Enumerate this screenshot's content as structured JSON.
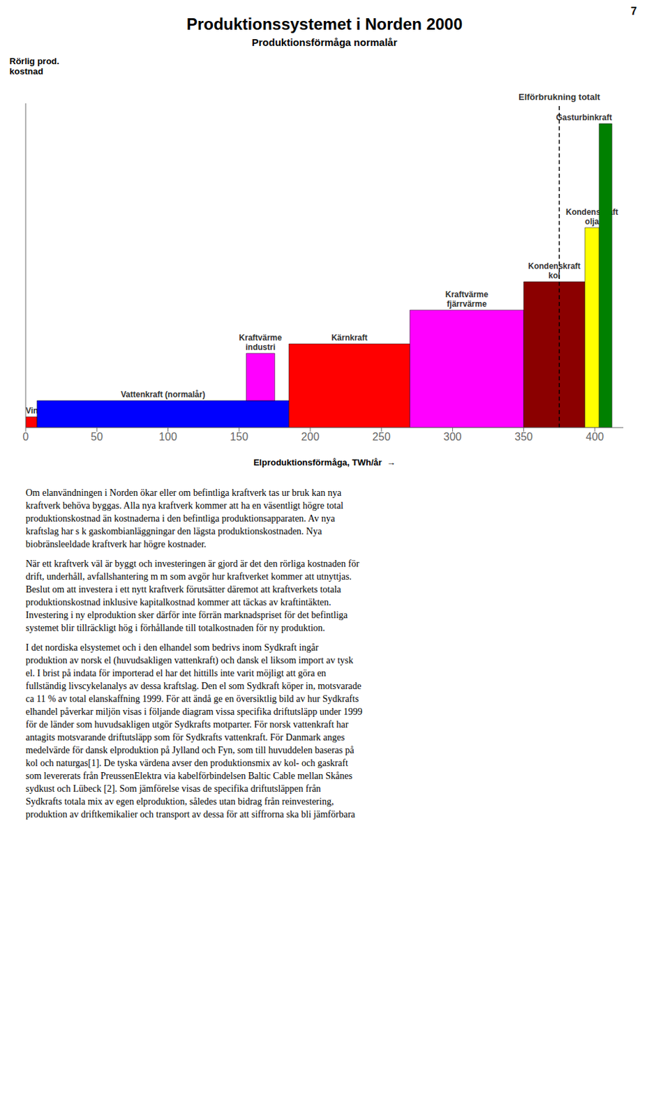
{
  "chart_data": {
    "type": "bar",
    "title": "Produktionssystemet i Norden 2000",
    "subtitle": "Produktionsförmåga normalår",
    "ylabel": "Rörlig prod.\nkostnad",
    "xlabel": "Elproduktionsförmåga, TWh/år  →",
    "segments": [
      {
        "name": "Vindkraft",
        "color": "#FF0000",
        "x_start": 0,
        "x_end": 8,
        "y_low": 0,
        "y_high": 8
      },
      {
        "name": "Vattenkraft (normalår)",
        "color": "#0000FF",
        "x_start": 8,
        "x_end": 185,
        "y_low": 0,
        "y_high": 20
      },
      {
        "name": "Kraftvärme\nindustri",
        "color": "#FF00FF",
        "x_start": 155,
        "x_end": 175,
        "y_low": 20,
        "y_high": 55
      },
      {
        "name": "Kärnkraft",
        "color": "#FF0000",
        "x_start": 185,
        "x_end": 270,
        "y_low": 0,
        "y_high": 62
      },
      {
        "name": "Kraftvärme\nfjärrvärme",
        "color": "#FF00FF",
        "x_start": 270,
        "x_end": 350,
        "y_low": 0,
        "y_high": 87
      },
      {
        "name": "Kondenskraft\nkol",
        "color": "#8B0000",
        "x_start": 350,
        "x_end": 393,
        "y_low": 0,
        "y_high": 108
      },
      {
        "name": "Kondenskraft\nolja",
        "color": "#FFFF00",
        "x_start": 393,
        "x_end": 403,
        "y_low": 0,
        "y_high": 148
      },
      {
        "name": "Gasturbinkraft",
        "color": "#008000",
        "x_start": 403,
        "x_end": 412,
        "y_low": 0,
        "y_high": 225
      }
    ],
    "annotations": [
      {
        "text": "Elförbrukning totalt",
        "x": 375,
        "line_style": "dashed"
      },
      {
        "text": "7"
      }
    ],
    "xlim": [
      0,
      420
    ],
    "xticks": [
      0,
      50,
      100,
      150,
      200,
      250,
      300,
      350,
      400
    ],
    "ylim": [
      0,
      240
    ],
    "yticks": [],
    "tick_labels": "x",
    "grid": false,
    "body_text": [
      [
        "Om elanvändningen i Norden ökar eller om befintliga kraftverk tas ur bruk kan nya",
        "kraftverk behöva byggas. Alla nya kraftverk kommer att ha en väsentligt högre total",
        "produktionskostnad än kostnaderna i den befintliga produktionsapparaten. Av nya",
        "kraftslag har s k gaskombianläggningar den lägsta produktionskostnaden. Nya",
        "biobränsleeldade kraftverk har högre kostnader."
      ],
      [
        "När ett kraftverk väl är byggt och investeringen är gjord är det den rörliga kostnaden för",
        "drift, underhåll, avfallshantering m m som avgör hur kraftverket kommer att utnyttjas.",
        "Beslut om att investera i ett nytt kraftverk förutsätter däremot att kraftverkets totala",
        "produktionskostnad inklusive kapitalkostnad kommer att täckas av kraftintäkten.",
        "Investering i ny elproduktion sker därför inte förrän marknadspriset för det befintliga",
        "systemet blir tillräckligt hög i förhållande till totalkostnaden för ny produktion."
      ],
      [
        "I det nordiska elsystemet och i den elhandel som bedrivs inom Sydkraft ingår",
        "produktion av norsk el (huvudsakligen vattenkraft) och dansk el liksom import av tysk",
        "el. I brist på indata för importerad el har det hittills inte varit möjligt att göra en",
        "fullständig livscykelanalys av dessa kraftslag. Den el som Sydkraft köper in, motsvarade",
        "ca 11 % av total elanskaffning 1999. För att ändå ge en översiktlig bild av hur Sydkrafts",
        "elhandel påverkar miljön visas i följande diagram vissa specifika driftutsläpp under 1999",
        "för de länder som huvudsakligen utgör Sydkrafts motparter. För norsk vattenkraft har",
        "antagits motsvarande driftutsläpp som för Sydkrafts vattenkraft. För Danmark anges",
        "medelvärde för dansk elproduktion på Jylland och Fyn, som till huvuddelen baseras på",
        "kol och naturgas[1]. De tyska värdena avser den produktionsmix av kol- och gaskraft",
        "som levererats från PreussenElektra via kabelförbindelsen Baltic Cable mellan Skånes",
        "sydkust och Lübeck [2]. Som jämförelse visas de specifika driftutsläppen från",
        "Sydkrafts totala mix av egen elproduktion, således utan bidrag från reinvestering,",
        "produktion av driftkemikalier och transport av dessa för att siffrorna ska bli jämförbara"
      ]
    ]
  }
}
